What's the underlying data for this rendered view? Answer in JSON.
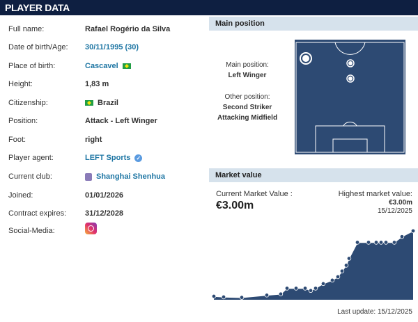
{
  "header": {
    "title": "PLAYER DATA"
  },
  "info": [
    {
      "label": "Full name:",
      "value": "Rafael Rogério da Silva"
    },
    {
      "label": "Date of birth/Age:",
      "value": "30/11/1995 (30)"
    },
    {
      "label": "Place of birth:",
      "value": "Cascavel"
    },
    {
      "label": "Height:",
      "value": "1,83 m"
    },
    {
      "label": "Citizenship:",
      "value": "Brazil"
    },
    {
      "label": "Position:",
      "value": "Attack - Left Winger"
    },
    {
      "label": "Foot:",
      "value": "right"
    },
    {
      "label": "Player agent:",
      "value": "LEFT Sports"
    },
    {
      "label": "Current club:",
      "value": "Shanghai Shenhua"
    },
    {
      "label": "Joined:",
      "value": "01/01/2026"
    },
    {
      "label": "Contract expires:",
      "value": "31/12/2028"
    },
    {
      "label": "Social-Media:",
      "value": ""
    }
  ],
  "position": {
    "title": "Main position",
    "main_label": "Main position:",
    "main": "Left Winger",
    "other_label": "Other position:",
    "others": [
      "Second Striker",
      "Attacking Midfield"
    ]
  },
  "market": {
    "title": "Market value",
    "current_label": "Current Market Value :",
    "current": "€3.00m",
    "highest_label": "Highest market value:",
    "highest": "€3.00m",
    "highest_date": "15/12/2025",
    "last_update": "Last update: 15/12/2025"
  },
  "colors": {
    "navy": "#0e1f41",
    "link": "#1d75a3",
    "chart_fill": "#2d4a73",
    "panel_header": "#d6e2ec"
  },
  "chart_data": {
    "type": "area",
    "unit": "€m",
    "values": [
      0.15,
      0.12,
      0.1,
      0.2,
      0.25,
      0.5,
      0.5,
      0.5,
      0.4,
      0.5,
      0.7,
      0.85,
      1.0,
      1.25,
      1.5,
      1.8,
      2.5,
      2.5,
      2.5,
      2.5,
      2.5,
      2.5,
      2.75,
      3.0
    ]
  }
}
